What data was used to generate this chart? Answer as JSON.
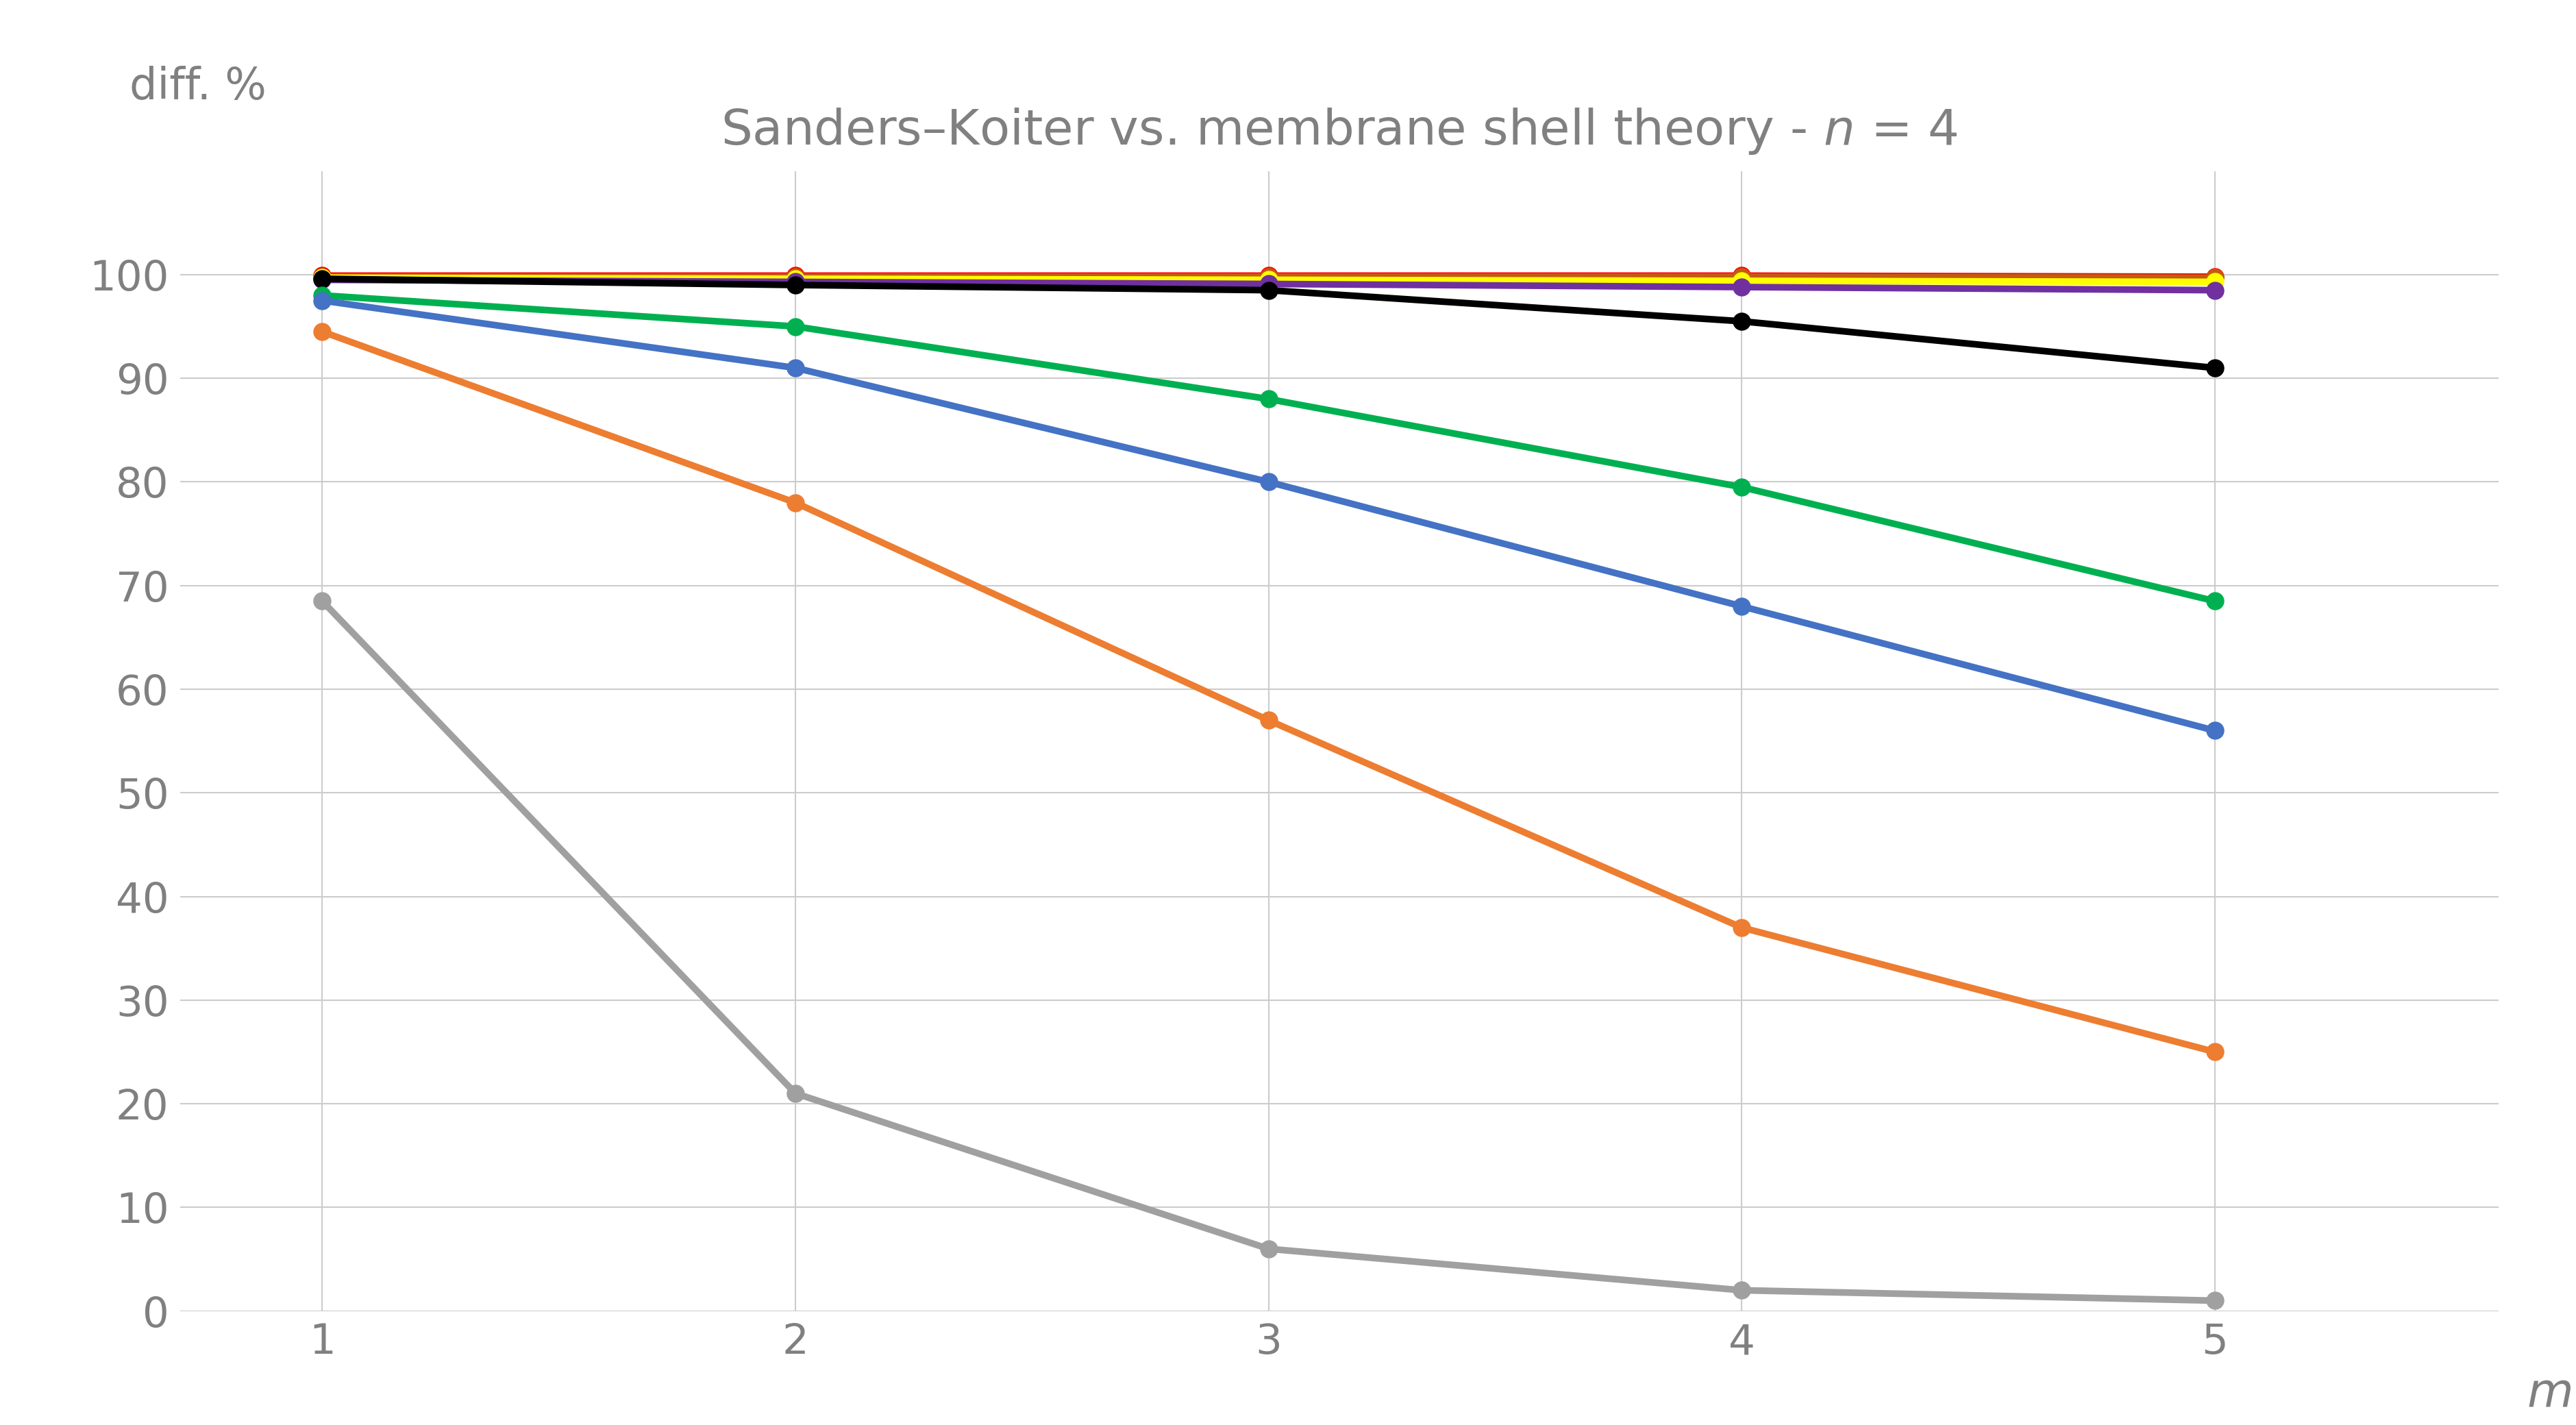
{
  "title": "Sanders–Koiter vs. membrane shell theory - $n$ = 4",
  "ylabel": "diff. %",
  "xlabel": "m",
  "x": [
    1,
    2,
    3,
    4,
    5
  ],
  "series": [
    {
      "color": "#ff0000",
      "values": [
        99.9,
        99.9,
        99.9,
        99.9,
        99.8
      ]
    },
    {
      "color": "#c55a11",
      "values": [
        99.8,
        99.8,
        99.8,
        99.8,
        99.7
      ]
    },
    {
      "color": "#ffff00",
      "values": [
        99.7,
        99.6,
        99.5,
        99.4,
        99.3
      ]
    },
    {
      "color": "#7030a0",
      "values": [
        99.5,
        99.3,
        99.1,
        98.8,
        98.5
      ]
    },
    {
      "color": "#000000",
      "values": [
        99.6,
        99.0,
        98.5,
        95.5,
        91.0
      ]
    },
    {
      "color": "#00b050",
      "values": [
        98.0,
        95.0,
        88.0,
        79.5,
        68.5
      ]
    },
    {
      "color": "#4472c4",
      "values": [
        97.5,
        91.0,
        80.0,
        68.0,
        56.0
      ]
    },
    {
      "color": "#ed7d31",
      "values": [
        94.5,
        78.0,
        57.0,
        37.0,
        25.0
      ]
    },
    {
      "color": "#a0a0a0",
      "values": [
        68.5,
        21.0,
        6.0,
        2.0,
        1.0
      ]
    }
  ],
  "ylim": [
    0,
    110
  ],
  "xlim_left": 0.7,
  "xlim_right": 5.6,
  "yticks": [
    0,
    10,
    20,
    30,
    40,
    50,
    60,
    70,
    80,
    90,
    100
  ],
  "xticks": [
    1,
    2,
    3,
    4,
    5
  ],
  "grid_color": "#cccccc",
  "background_color": "#ffffff",
  "marker": "o",
  "markersize": 18,
  "linewidth": 7,
  "title_fontsize": 52,
  "label_fontsize": 46,
  "tick_fontsize": 44,
  "title_color": "#808080",
  "axis_label_color": "#808080",
  "tick_color": "#808080"
}
